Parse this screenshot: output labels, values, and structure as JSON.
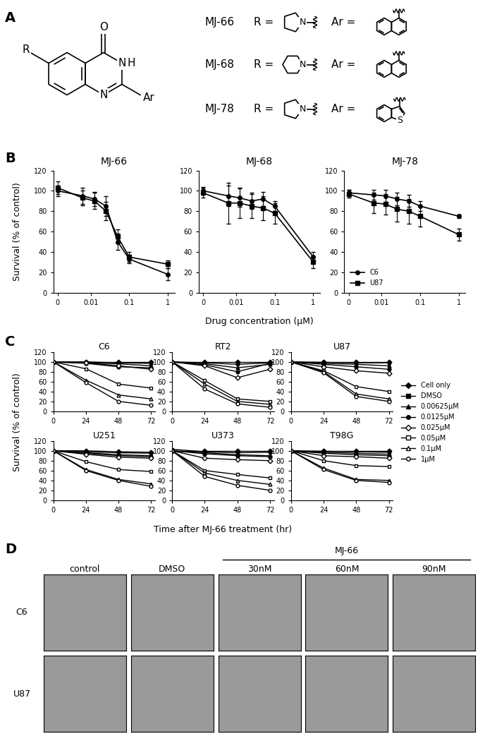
{
  "panel_labels": [
    "A",
    "B",
    "C",
    "D"
  ],
  "structure": {
    "core_labels": {
      "carbonyl": "O",
      "n3": "N",
      "h": "H",
      "n1": "N",
      "r": "R",
      "ar": "Ar"
    },
    "compounds": [
      {
        "name": "MJ-66",
        "R_label": "R =",
        "Ar_label": "Ar =",
        "R_ring_size": 5,
        "R_heteroatom": "N",
        "Ar_heteroatom": null
      },
      {
        "name": "MJ-68",
        "R_label": "R =",
        "Ar_label": "Ar =",
        "R_ring_size": 6,
        "R_heteroatom": "N",
        "Ar_heteroatom": null
      },
      {
        "name": "MJ-78",
        "R_label": "R =",
        "Ar_label": "Ar =",
        "R_ring_size": 5,
        "R_heteroatom": "N",
        "Ar_heteroatom": "S"
      }
    ]
  },
  "panel_b_axes": {
    "ylabel": "Survival (% of control)",
    "xlabel": "Drug concentration (μM)"
  },
  "panel_c_axes": {
    "ylabel": "Survival (% of control)",
    "xlabel": "Time after MJ-66 treatment (hr)"
  },
  "chart_data": [
    {
      "panel": "B",
      "type": "line",
      "title": "MJ-66",
      "log": "x",
      "x": [
        0,
        0.00625,
        0.0125,
        0.025,
        0.05,
        0.1,
        1
      ],
      "xlim": [
        -0.001,
        1.5
      ],
      "xticks": [
        0,
        0.01,
        0.1,
        1
      ],
      "ylim": [
        0,
        120
      ],
      "yticks": [
        0,
        20,
        40,
        60,
        80,
        100,
        120
      ],
      "series": [
        {
          "name": "C6",
          "color": "#000000",
          "marker": "circle",
          "values": [
            100,
            95,
            92,
            85,
            50,
            33,
            18
          ],
          "errors": [
            5,
            8,
            7,
            10,
            8,
            4,
            6
          ]
        },
        {
          "name": "U87",
          "color": "#000000",
          "marker": "square",
          "values": [
            103,
            93,
            90,
            80,
            55,
            35,
            28
          ],
          "errors": [
            6,
            7,
            8,
            9,
            7,
            5,
            4
          ]
        }
      ]
    },
    {
      "panel": "B",
      "type": "line",
      "title": "MJ-68",
      "log": "x",
      "x": [
        0,
        0.00625,
        0.0125,
        0.025,
        0.05,
        0.1,
        1
      ],
      "xlim": [
        -0.001,
        1.5
      ],
      "xticks": [
        0,
        0.01,
        0.1,
        1
      ],
      "ylim": [
        0,
        120
      ],
      "yticks": [
        0,
        20,
        40,
        60,
        80,
        100,
        120
      ],
      "series": [
        {
          "name": "C6",
          "color": "#000000",
          "marker": "circle",
          "values": [
            100,
            95,
            93,
            90,
            92,
            85,
            35
          ],
          "errors": [
            4,
            10,
            9,
            8,
            7,
            5,
            5
          ]
        },
        {
          "name": "U87",
          "color": "#000000",
          "marker": "square",
          "values": [
            98,
            88,
            88,
            85,
            83,
            78,
            30
          ],
          "errors": [
            5,
            20,
            15,
            12,
            12,
            10,
            6
          ]
        }
      ]
    },
    {
      "panel": "B",
      "type": "line",
      "title": "MJ-78",
      "log": "x",
      "legend": "lower left",
      "x": [
        0,
        0.00625,
        0.0125,
        0.025,
        0.05,
        0.1,
        1
      ],
      "xlim": [
        -0.001,
        1.5
      ],
      "xticks": [
        0,
        0.01,
        0.1,
        1
      ],
      "ylim": [
        0,
        120
      ],
      "yticks": [
        0,
        20,
        40,
        60,
        80,
        100,
        120
      ],
      "series": [
        {
          "name": "C6",
          "color": "#000000",
          "marker": "circle",
          "values": [
            98,
            96,
            95,
            92,
            90,
            85,
            75
          ],
          "errors": [
            3,
            5,
            6,
            6,
            6,
            5,
            2
          ]
        },
        {
          "name": "U87",
          "color": "#000000",
          "marker": "square",
          "values": [
            97,
            88,
            87,
            82,
            80,
            75,
            57
          ],
          "errors": [
            4,
            10,
            10,
            12,
            12,
            10,
            6
          ]
        }
      ]
    },
    {
      "panel": "C",
      "type": "line",
      "title": "C6",
      "legend": "right",
      "x": [
        0,
        24,
        48,
        72
      ],
      "xlim": [
        0,
        75
      ],
      "xticks": [
        0,
        24,
        48,
        72
      ],
      "ylim": [
        0,
        120
      ],
      "yticks": [
        0,
        20,
        40,
        60,
        80,
        100,
        120
      ],
      "series": [
        {
          "name": "Cell only",
          "color": "#000000",
          "marker": "diamond",
          "values": [
            100,
            100,
            100,
            100
          ]
        },
        {
          "name": "DMSO",
          "color": "#000000",
          "marker": "square",
          "values": [
            100,
            100,
            98,
            97
          ]
        },
        {
          "name": "0.00625μM",
          "color": "#000000",
          "marker": "triangle",
          "values": [
            100,
            98,
            96,
            92
          ]
        },
        {
          "name": "0.0125μM",
          "color": "#000000",
          "marker": "circle",
          "values": [
            100,
            97,
            90,
            88
          ]
        },
        {
          "name": "0.025μM",
          "color": "#000000",
          "marker": "open_diamond",
          "values": [
            100,
            98,
            92,
            85
          ]
        },
        {
          "name": "0.05μM",
          "color": "#000000",
          "marker": "open_square",
          "values": [
            100,
            86,
            55,
            47
          ]
        },
        {
          "name": "0.1μM",
          "color": "#000000",
          "marker": "open_triangle",
          "values": [
            100,
            63,
            33,
            25
          ]
        },
        {
          "name": "1μM",
          "color": "#000000",
          "marker": "open_circle",
          "values": [
            100,
            58,
            20,
            12
          ]
        }
      ]
    },
    {
      "panel": "C",
      "type": "line",
      "title": "RT2",
      "x": [
        0,
        24,
        48,
        72
      ],
      "xlim": [
        0,
        75
      ],
      "xticks": [
        0,
        24,
        48,
        72
      ],
      "ylim": [
        0,
        120
      ],
      "yticks": [
        0,
        20,
        40,
        60,
        80,
        100,
        120
      ],
      "series": [
        {
          "name": "Cell only",
          "color": "#000000",
          "marker": "diamond",
          "values": [
            100,
            100,
            100,
            100
          ]
        },
        {
          "name": "DMSO",
          "color": "#000000",
          "marker": "square",
          "values": [
            100,
            98,
            95,
            98
          ]
        },
        {
          "name": "0.00625μM",
          "color": "#000000",
          "marker": "triangle",
          "values": [
            100,
            96,
            88,
            95
          ]
        },
        {
          "name": "0.0125μM",
          "color": "#000000",
          "marker": "circle",
          "values": [
            100,
            94,
            80,
            97
          ]
        },
        {
          "name": "0.025μM",
          "color": "#000000",
          "marker": "open_diamond",
          "values": [
            100,
            92,
            68,
            85
          ]
        },
        {
          "name": "0.05μM",
          "color": "#000000",
          "marker": "open_square",
          "values": [
            100,
            62,
            25,
            20
          ]
        },
        {
          "name": "0.1μM",
          "color": "#000000",
          "marker": "open_triangle",
          "values": [
            100,
            55,
            20,
            14
          ]
        },
        {
          "name": "1μM",
          "color": "#000000",
          "marker": "open_circle",
          "values": [
            100,
            45,
            15,
            8
          ]
        }
      ]
    },
    {
      "panel": "C",
      "type": "line",
      "title": "U87",
      "x": [
        0,
        24,
        48,
        72
      ],
      "xlim": [
        0,
        75
      ],
      "xticks": [
        0,
        24,
        48,
        72
      ],
      "ylim": [
        0,
        120
      ],
      "yticks": [
        0,
        20,
        40,
        60,
        80,
        100,
        120
      ],
      "series": [
        {
          "name": "Cell only",
          "color": "#000000",
          "marker": "diamond",
          "values": [
            100,
            100,
            100,
            100
          ]
        },
        {
          "name": "DMSO",
          "color": "#000000",
          "marker": "square",
          "values": [
            100,
            99,
            98,
            98
          ]
        },
        {
          "name": "0.00625μM",
          "color": "#000000",
          "marker": "triangle",
          "values": [
            100,
            97,
            95,
            92
          ]
        },
        {
          "name": "0.0125μM",
          "color": "#000000",
          "marker": "circle",
          "values": [
            100,
            95,
            90,
            85
          ]
        },
        {
          "name": "0.025μM",
          "color": "#000000",
          "marker": "open_diamond",
          "values": [
            100,
            90,
            82,
            77
          ]
        },
        {
          "name": "0.05μM",
          "color": "#000000",
          "marker": "open_square",
          "values": [
            100,
            82,
            50,
            40
          ]
        },
        {
          "name": "0.1μM",
          "color": "#000000",
          "marker": "open_triangle",
          "values": [
            100,
            80,
            35,
            25
          ]
        },
        {
          "name": "1μM",
          "color": "#000000",
          "marker": "open_circle",
          "values": [
            100,
            78,
            30,
            20
          ]
        }
      ]
    },
    {
      "panel": "C",
      "type": "line",
      "title": "U251",
      "x": [
        0,
        24,
        48,
        72
      ],
      "xlim": [
        0,
        75
      ],
      "xticks": [
        0,
        24,
        48,
        72
      ],
      "ylim": [
        0,
        120
      ],
      "yticks": [
        0,
        20,
        40,
        60,
        80,
        100,
        120
      ],
      "series": [
        {
          "name": "Cell only",
          "color": "#000000",
          "marker": "diamond",
          "values": [
            100,
            100,
            98,
            97
          ]
        },
        {
          "name": "DMSO",
          "color": "#000000",
          "marker": "square",
          "values": [
            100,
            98,
            96,
            95
          ]
        },
        {
          "name": "0.00625μM",
          "color": "#000000",
          "marker": "triangle",
          "values": [
            100,
            96,
            92,
            90
          ]
        },
        {
          "name": "0.0125μM",
          "color": "#000000",
          "marker": "circle",
          "values": [
            100,
            95,
            90,
            88
          ]
        },
        {
          "name": "0.025μM",
          "color": "#000000",
          "marker": "open_diamond",
          "values": [
            100,
            93,
            87,
            85
          ]
        },
        {
          "name": "0.05μM",
          "color": "#000000",
          "marker": "open_square",
          "values": [
            100,
            78,
            62,
            58
          ]
        },
        {
          "name": "0.1μM",
          "color": "#000000",
          "marker": "open_triangle",
          "values": [
            100,
            62,
            42,
            33
          ]
        },
        {
          "name": "1μM",
          "color": "#000000",
          "marker": "open_circle",
          "values": [
            100,
            60,
            40,
            28
          ]
        }
      ]
    },
    {
      "panel": "C",
      "type": "line",
      "title": "U373",
      "x": [
        0,
        24,
        48,
        72
      ],
      "xlim": [
        0,
        75
      ],
      "xticks": [
        0,
        24,
        48,
        72
      ],
      "ylim": [
        0,
        120
      ],
      "yticks": [
        0,
        20,
        40,
        60,
        80,
        100,
        120
      ],
      "series": [
        {
          "name": "Cell only",
          "color": "#000000",
          "marker": "diamond",
          "values": [
            100,
            100,
            100,
            100
          ]
        },
        {
          "name": "DMSO",
          "color": "#000000",
          "marker": "square",
          "values": [
            103,
            98,
            96,
            97
          ]
        },
        {
          "name": "0.00625μM",
          "color": "#000000",
          "marker": "triangle",
          "values": [
            100,
            96,
            92,
            90
          ]
        },
        {
          "name": "0.0125μM",
          "color": "#000000",
          "marker": "circle",
          "values": [
            100,
            94,
            90,
            88
          ]
        },
        {
          "name": "0.025μM",
          "color": "#000000",
          "marker": "open_diamond",
          "values": [
            100,
            85,
            82,
            80
          ]
        },
        {
          "name": "0.05μM",
          "color": "#000000",
          "marker": "open_square",
          "values": [
            100,
            60,
            52,
            45
          ]
        },
        {
          "name": "0.1μM",
          "color": "#000000",
          "marker": "open_triangle",
          "values": [
            100,
            55,
            40,
            32
          ]
        },
        {
          "name": "1μM",
          "color": "#000000",
          "marker": "open_circle",
          "values": [
            100,
            48,
            30,
            20
          ]
        }
      ]
    },
    {
      "panel": "C",
      "type": "line",
      "title": "T98G",
      "x": [
        0,
        24,
        48,
        72
      ],
      "xlim": [
        0,
        75
      ],
      "xticks": [
        0,
        24,
        48,
        72
      ],
      "ylim": [
        0,
        120
      ],
      "yticks": [
        0,
        20,
        40,
        60,
        80,
        100,
        120
      ],
      "series": [
        {
          "name": "Cell only",
          "color": "#000000",
          "marker": "diamond",
          "values": [
            100,
            100,
            100,
            100
          ]
        },
        {
          "name": "DMSO",
          "color": "#000000",
          "marker": "square",
          "values": [
            100,
            99,
            98,
            97
          ]
        },
        {
          "name": "0.00625μM",
          "color": "#000000",
          "marker": "triangle",
          "values": [
            100,
            97,
            95,
            93
          ]
        },
        {
          "name": "0.0125μM",
          "color": "#000000",
          "marker": "circle",
          "values": [
            100,
            95,
            92,
            90
          ]
        },
        {
          "name": "0.025μM",
          "color": "#000000",
          "marker": "open_diamond",
          "values": [
            100,
            90,
            88,
            85
          ]
        },
        {
          "name": "0.05μM",
          "color": "#000000",
          "marker": "open_square",
          "values": [
            100,
            80,
            70,
            68
          ]
        },
        {
          "name": "0.1μM",
          "color": "#000000",
          "marker": "open_triangle",
          "values": [
            100,
            65,
            42,
            40
          ]
        },
        {
          "name": "1μM",
          "color": "#000000",
          "marker": "open_circle",
          "values": [
            100,
            62,
            40,
            36
          ]
        }
      ]
    }
  ],
  "micrographs": {
    "column_labels": [
      "control",
      "DMSO",
      "30nM",
      "60nM",
      "90nM"
    ],
    "group_label": "MJ-66",
    "group_members": [
      "30nM",
      "60nM",
      "90nM"
    ],
    "row_labels": [
      "C6",
      "U87"
    ],
    "color": "#9a9a9a"
  }
}
